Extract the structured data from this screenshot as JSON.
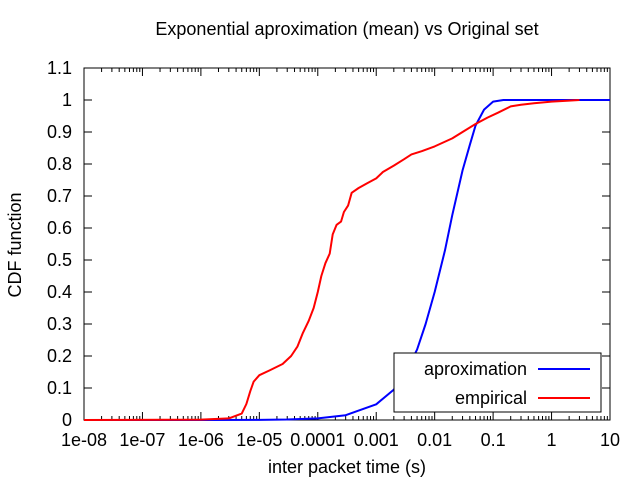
{
  "chart_data": {
    "type": "line",
    "title": "Exponential aproximation (mean) vs Original set",
    "xlabel": "inter packet time (s)",
    "ylabel": "CDF function",
    "x_scale": "log",
    "xlim": [
      1e-08,
      10
    ],
    "ylim": [
      0,
      1.1
    ],
    "x_ticks": [
      {
        "value": 1e-08,
        "label": "1e-08"
      },
      {
        "value": 1e-07,
        "label": "1e-07"
      },
      {
        "value": 1e-06,
        "label": "1e-06"
      },
      {
        "value": 1e-05,
        "label": "1e-05"
      },
      {
        "value": 0.0001,
        "label": "0.0001"
      },
      {
        "value": 0.001,
        "label": "0.001"
      },
      {
        "value": 0.01,
        "label": "0.01"
      },
      {
        "value": 0.1,
        "label": "0.1"
      },
      {
        "value": 1,
        "label": "1"
      },
      {
        "value": 10,
        "label": "10"
      }
    ],
    "y_ticks": [
      {
        "value": 0,
        "label": "0"
      },
      {
        "value": 0.1,
        "label": "0.1"
      },
      {
        "value": 0.2,
        "label": "0.2"
      },
      {
        "value": 0.3,
        "label": "0.3"
      },
      {
        "value": 0.4,
        "label": "0.4"
      },
      {
        "value": 0.5,
        "label": "0.5"
      },
      {
        "value": 0.6,
        "label": "0.6"
      },
      {
        "value": 0.7,
        "label": "0.7"
      },
      {
        "value": 0.8,
        "label": "0.8"
      },
      {
        "value": 0.9,
        "label": "0.9"
      },
      {
        "value": 1,
        "label": "1"
      },
      {
        "value": 1.1,
        "label": "1.1"
      }
    ],
    "grid": false,
    "legend_position": "bottom-right",
    "series": [
      {
        "name": "aproximation",
        "color": "#0000ff",
        "points": [
          [
            1e-08,
            0
          ],
          [
            1e-06,
            0.0001
          ],
          [
            1e-05,
            0.0005
          ],
          [
            3e-05,
            0.0015
          ],
          [
            0.0001,
            0.005
          ],
          [
            0.0003,
            0.015
          ],
          [
            0.001,
            0.049
          ],
          [
            0.002,
            0.095
          ],
          [
            0.003,
            0.14
          ],
          [
            0.005,
            0.22
          ],
          [
            0.007,
            0.3
          ],
          [
            0.01,
            0.4
          ],
          [
            0.015,
            0.53
          ],
          [
            0.02,
            0.64
          ],
          [
            0.03,
            0.78
          ],
          [
            0.04,
            0.86
          ],
          [
            0.05,
            0.92
          ],
          [
            0.07,
            0.97
          ],
          [
            0.1,
            0.995
          ],
          [
            0.15,
            1.0
          ],
          [
            1,
            1.0
          ],
          [
            10,
            1.0
          ]
        ]
      },
      {
        "name": "empirical",
        "color": "#ff0000",
        "points": [
          [
            1e-08,
            0
          ],
          [
            1e-06,
            0.001
          ],
          [
            3e-06,
            0.005
          ],
          [
            5e-06,
            0.02
          ],
          [
            6e-06,
            0.05
          ],
          [
            7e-06,
            0.09
          ],
          [
            8e-06,
            0.12
          ],
          [
            1e-05,
            0.14
          ],
          [
            1.5e-05,
            0.155
          ],
          [
            2.5e-05,
            0.175
          ],
          [
            3.5e-05,
            0.2
          ],
          [
            4.5e-05,
            0.23
          ],
          [
            5.5e-05,
            0.27
          ],
          [
            7e-05,
            0.31
          ],
          [
            8.5e-05,
            0.35
          ],
          [
            0.0001,
            0.4
          ],
          [
            0.000115,
            0.45
          ],
          [
            0.000135,
            0.49
          ],
          [
            0.00016,
            0.52
          ],
          [
            0.00018,
            0.58
          ],
          [
            0.00021,
            0.61
          ],
          [
            0.00025,
            0.62
          ],
          [
            0.00028,
            0.65
          ],
          [
            0.00033,
            0.67
          ],
          [
            0.00038,
            0.71
          ],
          [
            0.0005,
            0.725
          ],
          [
            0.0007,
            0.74
          ],
          [
            0.001,
            0.755
          ],
          [
            0.0013,
            0.775
          ],
          [
            0.002,
            0.795
          ],
          [
            0.003,
            0.815
          ],
          [
            0.004,
            0.83
          ],
          [
            0.006,
            0.84
          ],
          [
            0.01,
            0.855
          ],
          [
            0.02,
            0.88
          ],
          [
            0.03,
            0.9
          ],
          [
            0.05,
            0.925
          ],
          [
            0.08,
            0.945
          ],
          [
            0.12,
            0.96
          ],
          [
            0.2,
            0.98
          ],
          [
            0.3,
            0.985
          ],
          [
            0.5,
            0.99
          ],
          [
            1,
            0.995
          ],
          [
            2,
            0.998
          ],
          [
            3,
            1.0
          ]
        ]
      }
    ]
  }
}
